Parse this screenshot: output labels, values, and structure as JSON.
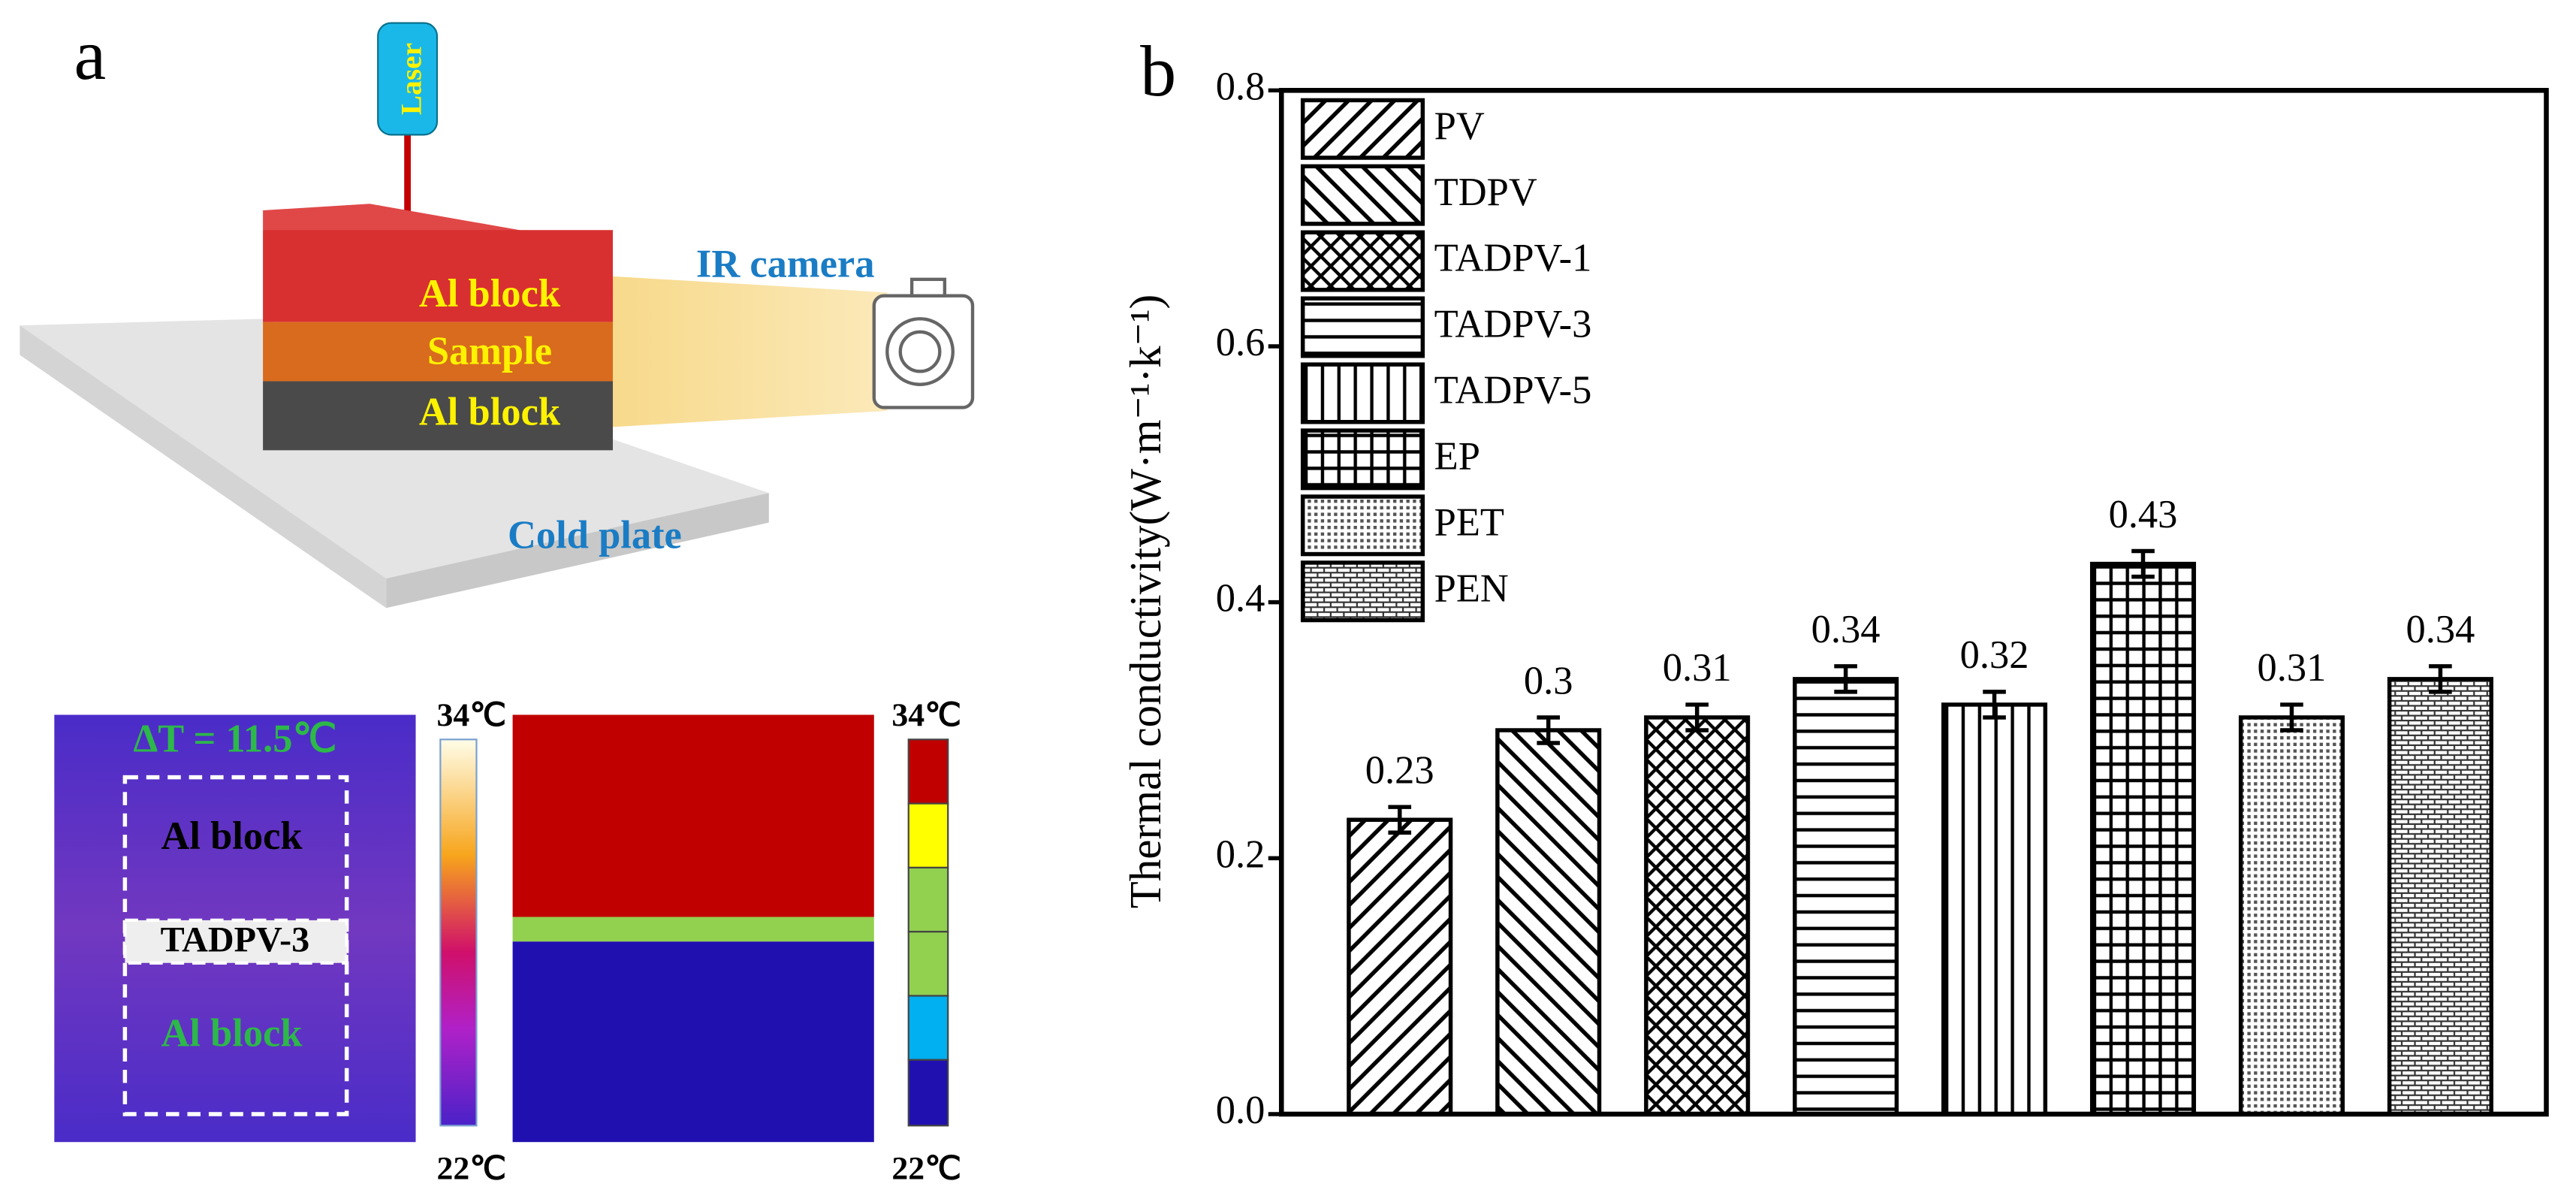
{
  "panel_a": {
    "label": "a",
    "laser": "Laser",
    "ir_camera": "IR camera",
    "top_block": "Al block",
    "sample": "Sample",
    "bottom_block": "Al block",
    "cold_plate": "Cold plate",
    "delta_t": "ΔT = 11.5℃",
    "thermal_top": "Al block",
    "thermal_sample": "TADPV-3",
    "thermal_bottom": "Al block",
    "left_bar_max": "34℃",
    "left_bar_min": "22℃",
    "right_bar_max": "34℃",
    "right_bar_min": "22℃"
  },
  "chart_data": {
    "type": "bar",
    "panel_label": "b",
    "y_label": "Thermal conductivity(W·m⁻¹·k⁻¹)",
    "categories": [
      "PV",
      "TDPV",
      "TADPV-1",
      "TADPV-3",
      "TADPV-5",
      "EP",
      "PET",
      "PEN"
    ],
    "values": [
      0.23,
      0.3,
      0.31,
      0.34,
      0.32,
      0.43,
      0.31,
      0.34
    ],
    "errors": [
      0.01,
      0.01,
      0.01,
      0.01,
      0.01,
      0.01,
      0.01,
      0.01
    ],
    "patterns": [
      "diag-up",
      "diag-down",
      "cross",
      "horizontal",
      "vertical",
      "grid",
      "dots",
      "brick"
    ],
    "ylim": [
      0,
      0.8
    ],
    "yticks": [
      {
        "value": 0,
        "label": "0.0"
      },
      0.2,
      0.4,
      0.6,
      0.8
    ],
    "legend": "upper left",
    "color": "#000000"
  }
}
